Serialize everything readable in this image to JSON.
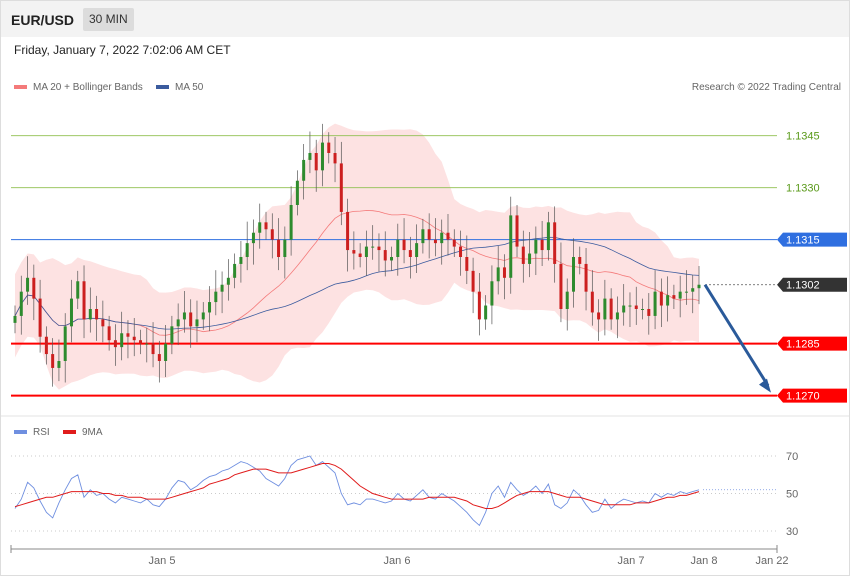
{
  "header": {
    "symbol": "EUR/USD",
    "timeframe": "30 MIN",
    "datetime": "Friday, January 7, 2022 7:02:06 AM CET"
  },
  "legend": {
    "ma20_label": "MA 20 + Bollinger Bands",
    "ma50_label": "MA 50",
    "rsi_label": "RSI",
    "rsi_ma_label": "9MA",
    "credit": "Research © 2022 Trading Central"
  },
  "colors": {
    "ma20": "#f47a7a",
    "bollinger_fill": "#fde2e2",
    "ma50": "#3b5b9e",
    "bull": "#2e8b2e",
    "bear": "#cc1f1f",
    "rsi": "#6f8fe0",
    "rsi_ma": "#e01c1c",
    "resistance": "#8fbf4f",
    "pivot": "#2f6fe0",
    "support": "#ff0000",
    "arrow": "#2a5a9a"
  },
  "chart_data": [
    {
      "type": "candlestick",
      "title": "EUR/USD 30 MIN",
      "ylim": [
        1.1265,
        1.1355
      ],
      "x_labels": [
        "Jan 5",
        "Jan 6",
        "Jan 7",
        "Jan 8",
        "Jan 22"
      ],
      "levels": [
        {
          "value": 1.1345,
          "label": "1.1345",
          "kind": "resistance"
        },
        {
          "value": 1.133,
          "label": "1.1330",
          "kind": "resistance"
        },
        {
          "value": 1.1315,
          "label": "1.1315",
          "kind": "pivot"
        },
        {
          "value": 1.1302,
          "label": "1.1302",
          "kind": "last"
        },
        {
          "value": 1.1285,
          "label": "1.1285",
          "kind": "support"
        },
        {
          "value": 1.127,
          "label": "1.1270",
          "kind": "support"
        }
      ],
      "close": [
        1.1293,
        1.13,
        1.1304,
        1.1298,
        1.1287,
        1.1282,
        1.1278,
        1.128,
        1.129,
        1.1298,
        1.1303,
        1.1292,
        1.1295,
        1.1292,
        1.129,
        1.1286,
        1.1284,
        1.1288,
        1.1287,
        1.1286,
        1.1285,
        1.1285,
        1.1282,
        1.128,
        1.1285,
        1.129,
        1.1292,
        1.1294,
        1.129,
        1.1292,
        1.1294,
        1.1297,
        1.13,
        1.1302,
        1.1304,
        1.1308,
        1.131,
        1.1314,
        1.1317,
        1.132,
        1.1318,
        1.1315,
        1.131,
        1.1315,
        1.1325,
        1.1332,
        1.1338,
        1.134,
        1.1335,
        1.1343,
        1.134,
        1.1337,
        1.1323,
        1.1312,
        1.1311,
        1.131,
        1.1313,
        1.1313,
        1.1312,
        1.1309,
        1.131,
        1.1315,
        1.1312,
        1.131,
        1.1314,
        1.1318,
        1.1315,
        1.1314,
        1.1317,
        1.1315,
        1.1313,
        1.131,
        1.1306,
        1.13,
        1.1292,
        1.1296,
        1.1303,
        1.1307,
        1.1304,
        1.1322,
        1.1313,
        1.1308,
        1.1311,
        1.1315,
        1.1312,
        1.132,
        1.1308,
        1.1295,
        1.13,
        1.131,
        1.1308,
        1.13,
        1.1294,
        1.1292,
        1.1298,
        1.1292,
        1.1294,
        1.1296,
        1.1296,
        1.1295,
        1.1295,
        1.1293,
        1.13,
        1.1296,
        1.1299,
        1.1298,
        1.13,
        1.13,
        1.1301,
        1.1302
      ]
    },
    {
      "type": "line",
      "title": "RSI",
      "ylim": [
        22,
        78
      ],
      "y_ticks": [
        30,
        50,
        70
      ],
      "series": [
        {
          "name": "RSI",
          "values": [
            42,
            47,
            56,
            53,
            46,
            40,
            37,
            45,
            52,
            58,
            60,
            48,
            52,
            49,
            50,
            47,
            45,
            48,
            47,
            46,
            45,
            47,
            44,
            43,
            47,
            53,
            57,
            56,
            52,
            54,
            57,
            59,
            60,
            62,
            63,
            65,
            67,
            66,
            64,
            62,
            58,
            56,
            54,
            58,
            65,
            68,
            69,
            70,
            65,
            67,
            64,
            61,
            50,
            44,
            45,
            44,
            47,
            47,
            46,
            45,
            46,
            50,
            47,
            46,
            49,
            52,
            48,
            47,
            50,
            48,
            46,
            43,
            40,
            36,
            33,
            40,
            50,
            54,
            48,
            56,
            52,
            49,
            51,
            54,
            50,
            55,
            44,
            42,
            45,
            52,
            49,
            44,
            40,
            41,
            47,
            42,
            45,
            47,
            46,
            45,
            46,
            45,
            50,
            48,
            50,
            49,
            51,
            50,
            51,
            52
          ]
        },
        {
          "name": "9MA",
          "values": [
            43,
            44,
            45,
            46,
            47,
            48,
            48,
            49,
            50,
            51,
            51,
            51,
            51,
            51,
            50,
            50,
            49,
            49,
            48,
            48,
            48,
            47,
            47,
            47,
            47,
            48,
            49,
            50,
            51,
            52,
            53,
            55,
            56,
            57,
            58,
            60,
            61,
            62,
            63,
            63,
            63,
            62,
            61,
            61,
            61,
            62,
            63,
            64,
            65,
            66,
            66,
            65,
            63,
            60,
            57,
            54,
            52,
            50,
            49,
            48,
            47,
            47,
            47,
            47,
            47,
            47,
            48,
            48,
            48,
            48,
            48,
            47,
            46,
            44,
            43,
            42,
            42,
            43,
            45,
            47,
            49,
            50,
            51,
            51,
            51,
            51,
            50,
            49,
            48,
            48,
            48,
            47,
            46,
            45,
            44,
            44,
            44,
            44,
            44,
            45,
            45,
            45,
            46,
            47,
            48,
            48,
            49,
            49,
            50,
            51
          ]
        }
      ]
    }
  ]
}
